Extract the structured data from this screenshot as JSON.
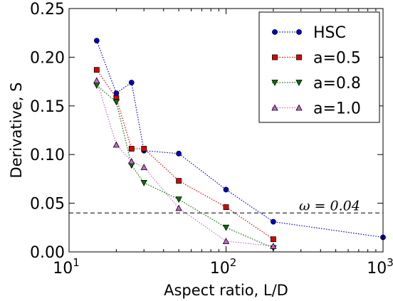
{
  "chart_data": {
    "type": "line",
    "xlabel": "Aspect ratio, L/D",
    "ylabel": "Derivative, S",
    "xscale": "log",
    "xlim": [
      10,
      1000
    ],
    "ylim": [
      0,
      0.25
    ],
    "x_tick_labels": [
      {
        "base": "10",
        "exp": "1",
        "value": 10
      },
      {
        "base": "10",
        "exp": "2",
        "value": 100
      },
      {
        "base": "10",
        "exp": "3",
        "value": 1000
      }
    ],
    "y_tick_labels": [
      "0.00",
      "0.05",
      "0.10",
      "0.15",
      "0.20",
      "0.25"
    ],
    "y_tick_values": [
      0,
      0.05,
      0.1,
      0.15,
      0.2,
      0.25
    ],
    "grid": false,
    "legend_position": "top-right",
    "series": [
      {
        "name": "HSC",
        "color": "#0000cc",
        "marker": "circle",
        "x": [
          15,
          20,
          25,
          30,
          50,
          100,
          200,
          1000
        ],
        "y": [
          0.217,
          0.163,
          0.174,
          0.104,
          0.101,
          0.064,
          0.031,
          0.015
        ]
      },
      {
        "name": "a=0.5",
        "color": "#dd0000",
        "marker": "square",
        "x": [
          15,
          20,
          25,
          30,
          50,
          100,
          200
        ],
        "y": [
          0.187,
          0.158,
          0.106,
          0.106,
          0.073,
          0.046,
          0.013
        ]
      },
      {
        "name": "a=0.8",
        "color": "#007700",
        "marker": "triangle-down",
        "x": [
          15,
          20,
          25,
          30,
          50,
          100,
          200
        ],
        "y": [
          0.171,
          0.154,
          0.089,
          0.071,
          0.054,
          0.025,
          0.004
        ]
      },
      {
        "name": "a=1.0",
        "color": "#cc66cc",
        "marker": "triangle-up",
        "x": [
          15,
          20,
          25,
          30,
          50,
          100,
          200
        ],
        "y": [
          0.176,
          0.11,
          0.093,
          0.087,
          0.045,
          0.011,
          0.006
        ]
      }
    ],
    "reference_line": {
      "y": 0.04,
      "label": "ω = 0.04",
      "style": "dashed"
    }
  }
}
